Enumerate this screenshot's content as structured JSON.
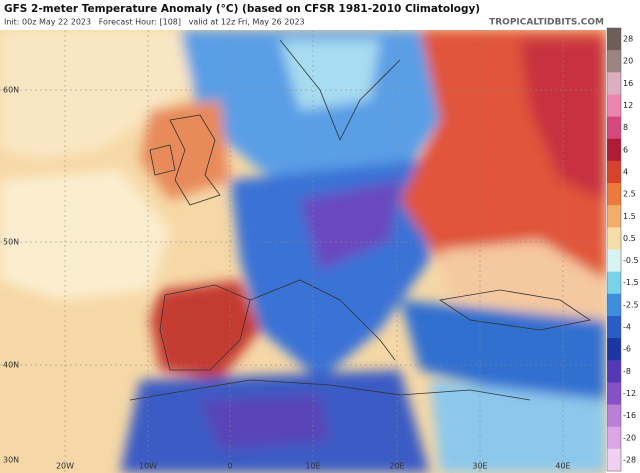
{
  "header": {
    "title": "GFS 2-meter Temperature Anomaly (°C) (based on CFSR 1981-2010 Climatology)",
    "subtitle": "Init: 00z May 22 2023   Forecast Hour: [108]   valid at 12z Fri, May 26 2023",
    "brand": "TROPICALTIDBITS.COM"
  },
  "map": {
    "lat_labels": [
      "60N",
      "50N",
      "40N",
      "30N"
    ],
    "lon_labels": [
      "20W",
      "10W",
      "0",
      "10E",
      "20E",
      "30E",
      "40E"
    ]
  },
  "colorbar": {
    "labels": [
      28,
      20,
      16,
      12,
      8,
      6,
      4,
      2.5,
      1.5,
      0.5,
      -0.5,
      -1.5,
      -2.5,
      -4,
      -6,
      -8,
      -12,
      -16,
      -20,
      -28
    ],
    "colors": [
      "#6e5e5a",
      "#9c8580",
      "#dcaec0",
      "#ec86b0",
      "#d4487e",
      "#b01c38",
      "#d6422c",
      "#ec7a3c",
      "#f4ac6c",
      "#f8dca8",
      "#d8f4f2",
      "#78d2e8",
      "#3e8ede",
      "#2a5cc6",
      "#1c36a0",
      "#5438b4",
      "#8650c6",
      "#bc7ed6",
      "#dca6e6",
      "#f0d0f0"
    ]
  }
}
